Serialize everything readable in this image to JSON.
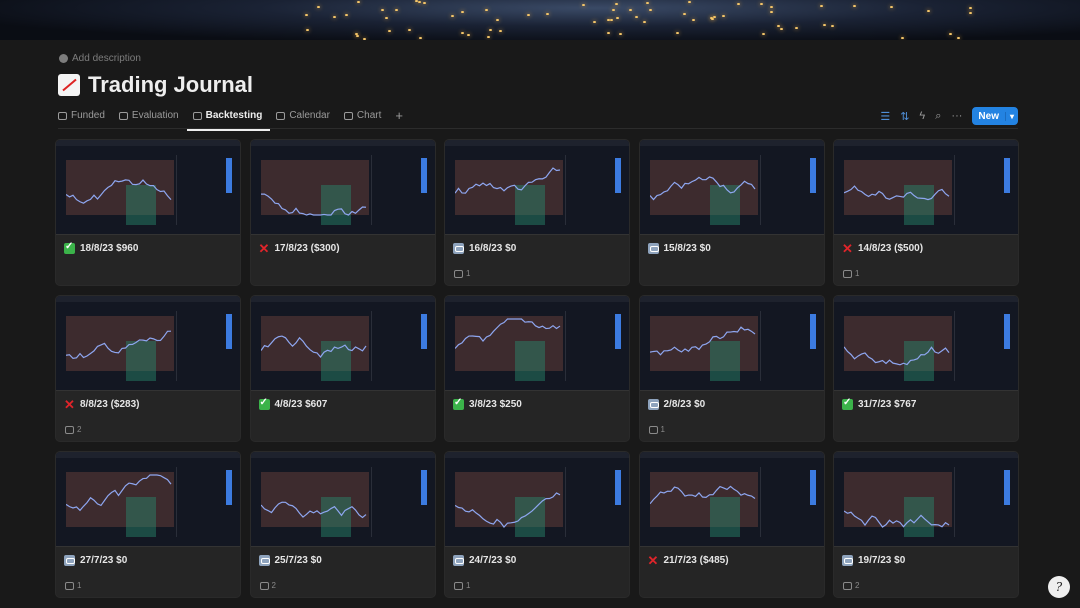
{
  "page": {
    "add_description": "Add description",
    "title": "Trading Journal",
    "title_icon": "chart-increasing-emoji"
  },
  "tabs": [
    {
      "label": "Funded",
      "icon": "money-icon",
      "active": false
    },
    {
      "label": "Evaluation",
      "icon": "pie-icon",
      "active": false
    },
    {
      "label": "Backtesting",
      "icon": "pin-icon",
      "active": true
    },
    {
      "label": "Calendar",
      "icon": "calendar-icon",
      "active": false
    },
    {
      "label": "Chart",
      "icon": "clock-icon",
      "active": false
    }
  ],
  "toolbar": {
    "new_label": "New",
    "accent": "#2383e2"
  },
  "status_colors": {
    "win": "#3bb34a",
    "loss": "#e0242a",
    "breakeven": "#8ea3bd"
  },
  "cards": [
    {
      "title": "18/8/23 $960",
      "status": "win",
      "comments": ""
    },
    {
      "title": "17/8/23 ($300)",
      "status": "loss",
      "comments": ""
    },
    {
      "title": "16/8/23 $0",
      "status": "breakeven",
      "comments": "1"
    },
    {
      "title": "15/8/23 $0",
      "status": "breakeven",
      "comments": ""
    },
    {
      "title": "14/8/23 ($500)",
      "status": "loss",
      "comments": "1"
    },
    {
      "title": "8/8/23 ($283)",
      "status": "loss",
      "comments": "2"
    },
    {
      "title": "4/8/23 $607",
      "status": "win",
      "comments": ""
    },
    {
      "title": "3/8/23 $250",
      "status": "win",
      "comments": ""
    },
    {
      "title": "2/8/23 $0",
      "status": "breakeven",
      "comments": "1"
    },
    {
      "title": "31/7/23 $767",
      "status": "win",
      "comments": ""
    },
    {
      "title": "27/7/23 $0",
      "status": "breakeven",
      "comments": "1"
    },
    {
      "title": "25/7/23 $0",
      "status": "breakeven",
      "comments": "2"
    },
    {
      "title": "24/7/23 $0",
      "status": "breakeven",
      "comments": "1"
    },
    {
      "title": "21/7/23 ($485)",
      "status": "loss",
      "comments": ""
    },
    {
      "title": "19/7/23 $0",
      "status": "breakeven",
      "comments": "2"
    }
  ]
}
